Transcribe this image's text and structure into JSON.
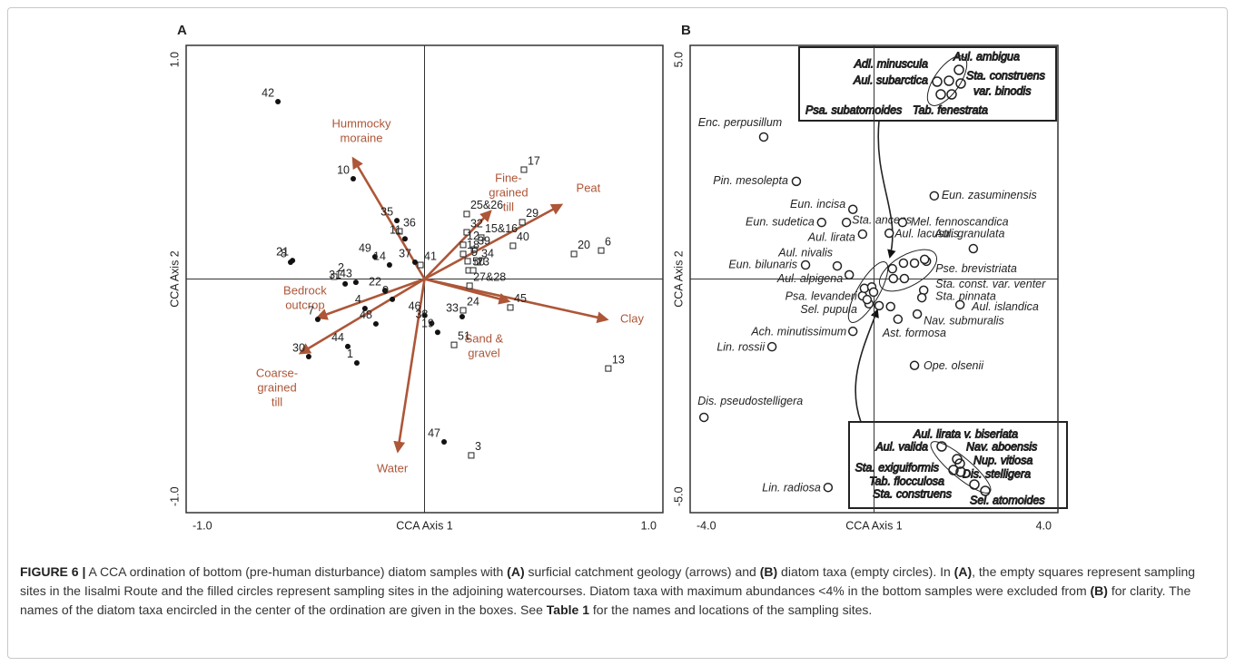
{
  "chart_data": [
    {
      "type": "scatter",
      "panel": "A",
      "xlabel": "CCA Axis 1",
      "ylabel": "CCA Axis 2",
      "xlim": [
        -1,
        1
      ],
      "ylim": [
        -1,
        1
      ],
      "xticks": [
        {
          "value": -1,
          "label": "-1.0"
        },
        {
          "value": 1,
          "label": "1.0"
        }
      ],
      "yticks": [
        {
          "value": -1,
          "label": "-1.0"
        },
        {
          "value": 1,
          "label": "1.0"
        }
      ],
      "zero_lines": true,
      "series": [
        {
          "marker": "square",
          "color": "#222",
          "labels": [
            "17",
            "29",
            "40",
            "15&16",
            "25&26",
            "32",
            "12",
            "39",
            "18",
            "5",
            "34",
            "50",
            "23",
            "27&28",
            "20",
            "6",
            "24",
            "45",
            "51",
            "13",
            "3",
            "36",
            "41",
            "2"
          ],
          "x": [
            0.417,
            0.41,
            0.371,
            0.238,
            0.177,
            0.177,
            0.162,
            0.208,
            0.162,
            0.181,
            0.223,
            0.185,
            0.204,
            0.189,
            0.627,
            0.741,
            0.162,
            0.36,
            0.124,
            0.771,
            0.196,
            -0.105,
            -0.017,
            -0.379
          ],
          "y": [
            0.468,
            0.243,
            0.142,
            0.177,
            0.278,
            0.2,
            0.146,
            0.126,
            0.107,
            0.076,
            0.072,
            0.037,
            0.037,
            -0.029,
            0.107,
            0.122,
            -0.134,
            -0.122,
            -0.282,
            -0.383,
            -0.755,
            0.204,
            0.06,
            0.01
          ]
        },
        {
          "marker": "circle",
          "color": "#111",
          "labels": [
            "42",
            "10",
            "35",
            "11",
            "49",
            "37",
            "14",
            "21",
            "8",
            "43",
            "31",
            "22",
            "9",
            "4",
            "7",
            "48",
            "44",
            "30",
            "1",
            "46",
            "38",
            "19",
            "33",
            "47"
          ],
          "x": [
            -0.615,
            -0.299,
            -0.116,
            -0.082,
            -0.208,
            -0.04,
            -0.147,
            -0.554,
            -0.562,
            -0.288,
            -0.333,
            -0.166,
            -0.135,
            -0.25,
            -0.448,
            -0.204,
            -0.322,
            -0.486,
            -0.284,
            0.0,
            0.03,
            0.055,
            0.158,
            0.082
          ],
          "y": [
            0.759,
            0.429,
            0.25,
            0.172,
            0.095,
            0.072,
            0.06,
            0.079,
            0.072,
            -0.014,
            -0.021,
            -0.049,
            -0.087,
            -0.126,
            -0.173,
            -0.192,
            -0.289,
            -0.332,
            -0.359,
            -0.155,
            -0.19,
            -0.228,
            -0.161,
            -0.697
          ]
        }
      ],
      "arrows": {
        "color": "#ad5638",
        "labels": [
          [
            "Hummocky",
            "moraine"
          ],
          [
            "Fine-",
            "grained",
            "till"
          ],
          [
            "Peat"
          ],
          [
            "Clay"
          ],
          [
            "Sand &",
            "gravel"
          ],
          [
            "Water"
          ],
          [
            "Coarse-",
            "grained",
            "till"
          ],
          [
            "Bedrock",
            "outcrop"
          ]
        ],
        "x": [
          -0.299,
          0.276,
          0.573,
          0.764,
          0.352,
          -0.112,
          -0.52,
          -0.448
        ],
        "y": [
          0.515,
          0.289,
          0.317,
          -0.173,
          -0.095,
          -0.736,
          -0.317,
          -0.165
        ]
      }
    },
    {
      "type": "scatter",
      "panel": "B",
      "xlabel": "CCA Axis 1",
      "ylabel": "CCA Axis 2",
      "xlim": [
        -4,
        4
      ],
      "ylim": [
        -5,
        5
      ],
      "xticks": [
        {
          "value": -4,
          "label": "-4.0"
        },
        {
          "value": 4,
          "label": "4.0"
        }
      ],
      "yticks": [
        {
          "value": -5,
          "label": "-5.0"
        },
        {
          "value": 5,
          "label": "5.0"
        }
      ],
      "zero_lines": true,
      "series": [
        {
          "marker": "open-circle",
          "color": "#222",
          "labels": [
            "Enc. perpusillum",
            "Pin. mesolepta",
            "Eun. incisa",
            "Eun. sudetica",
            "Sta. anceps",
            "Eun. zasuminensis",
            "Mel. fennoscandica",
            "Aul. lirata",
            "Aul. lacustris",
            "Aul. granulata",
            "Aul. nivalis",
            "Eun. bilunaris",
            "Aul. alpigena",
            "Pse. brevistriata",
            "Sta. const. var. venter",
            "Sta. pinnata",
            "Aul. islandica",
            "Psa. levanderi",
            "Sel. pupula",
            "Nav. submuralis",
            "Ast. formosa",
            "Ach. minutissimum",
            "Lin. rossii",
            "Ope. olsenii",
            "Dis. pseudostelligera",
            "Lin. radiosa"
          ],
          "x": [
            -2.4,
            -1.69,
            -0.46,
            -1.14,
            -0.6,
            1.31,
            0.62,
            -0.25,
            0.33,
            2.16,
            -0.8,
            -1.49,
            -0.54,
            1.14,
            1.08,
            1.04,
            1.87,
            -0.25,
            -0.11,
            0.94,
            0.52,
            -0.46,
            -2.22,
            0.88,
            -3.7,
            -1.0
          ],
          "y": [
            3.04,
            2.09,
            1.49,
            1.21,
            1.21,
            1.78,
            1.21,
            0.96,
            0.98,
            0.65,
            0.28,
            0.3,
            0.09,
            0.38,
            -0.24,
            -0.4,
            -0.55,
            -0.36,
            -0.53,
            -0.75,
            -0.86,
            -1.12,
            -1.45,
            -1.85,
            -2.96,
            -4.46
          ]
        },
        {
          "marker": "open-circle",
          "color": "#222",
          "x": [
            -0.21,
            -0.05,
            -0.01,
            -0.15,
            0.11,
            0.4,
            0.64,
            0.88,
            1.1,
            0.42,
            0.66,
            0.36
          ],
          "y": [
            -0.2,
            -0.17,
            -0.28,
            -0.44,
            -0.57,
            0.22,
            0.34,
            0.34,
            0.42,
            0.01,
            0.01,
            -0.59
          ]
        }
      ],
      "boxes": [
        {
          "labels": [
            "Adl. minuscula",
            "Aul. subarctica",
            "Aul. ambigua",
            "Sta. construens",
            "var. binodis",
            "Psa. subatomoides",
            "Tab. fenestrata"
          ]
        },
        {
          "labels": [
            "Aul. lirata v. biseriata",
            "Aul. valida",
            "Nav. aboensis",
            "Nup. vitiosa",
            "Dis. stelligera",
            "Sta. exiguiformis",
            "Tab. flocculosa",
            "Sta. construens",
            "Sel. atomoides"
          ]
        }
      ]
    }
  ],
  "caption": {
    "segments": [
      {
        "text": "FIGURE 6 |",
        "bold": true
      },
      {
        "text": " A CCA ordination of bottom (pre-human disturbance) diatom samples with ",
        "bold": false
      },
      {
        "text": "(A)",
        "bold": true
      },
      {
        "text": " surficial catchment geology (arrows) and ",
        "bold": false
      },
      {
        "text": "(B)",
        "bold": true
      },
      {
        "text": " diatom taxa (empty circles). In ",
        "bold": false
      },
      {
        "text": "(A)",
        "bold": true
      },
      {
        "text": ", the empty squares represent sampling sites in the Iisalmi Route and the filled circles represent sampling sites in the adjoining watercourses. Diatom taxa with maximum abundances <4% in the bottom samples were excluded from ",
        "bold": false
      },
      {
        "text": "(B)",
        "bold": true
      },
      {
        "text": " for clarity. The names of the diatom taxa encircled in the center of the ordination are given in the boxes. See ",
        "bold": false
      },
      {
        "text": "Table 1",
        "bold": true
      },
      {
        "text": " for the names and locations of the sampling sites.",
        "bold": false
      }
    ]
  }
}
